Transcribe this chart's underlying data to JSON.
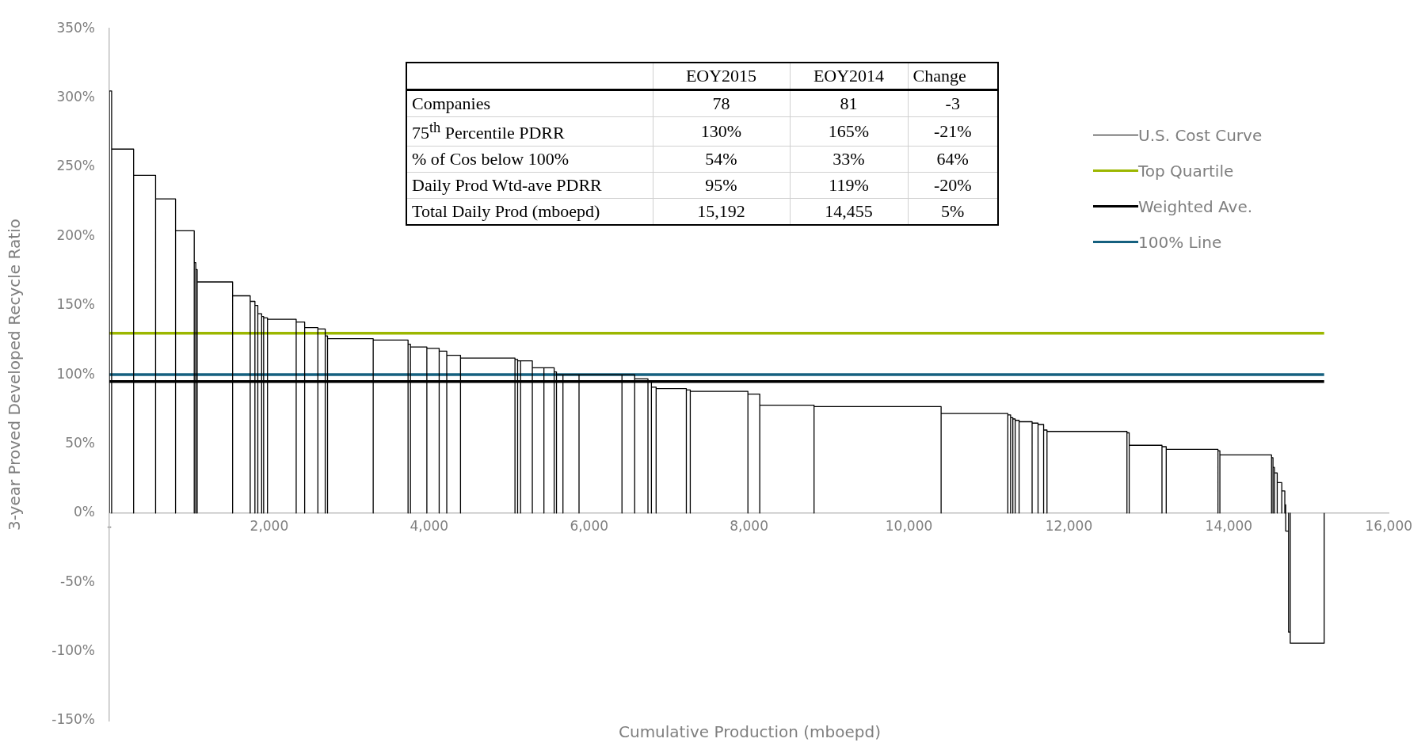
{
  "chart_data": {
    "type": "line",
    "xlabel": "Cumulative Production (mboepd)",
    "ylabel": "3-year Proved Developed Recycle Ratio",
    "xlim": [
      0,
      16000
    ],
    "xticks": [
      {
        "value": 0,
        "label": "-"
      },
      {
        "value": 2000,
        "label": "2,000"
      },
      {
        "value": 4000,
        "label": "4,000"
      },
      {
        "value": 6000,
        "label": "6,000"
      },
      {
        "value": 8000,
        "label": "8,000"
      },
      {
        "value": 10000,
        "label": "10,000"
      },
      {
        "value": 12000,
        "label": "12,000"
      },
      {
        "value": 14000,
        "label": "14,000"
      },
      {
        "value": 16000,
        "label": "16,000"
      }
    ],
    "ylim": [
      -150,
      350
    ],
    "yticks": [
      {
        "value": -150,
        "label": "-150%"
      },
      {
        "value": -100,
        "label": "-100%"
      },
      {
        "value": -50,
        "label": "-50%"
      },
      {
        "value": 0,
        "label": "0%"
      },
      {
        "value": 50,
        "label": "50%"
      },
      {
        "value": 100,
        "label": "100%"
      },
      {
        "value": 150,
        "label": "150%"
      },
      {
        "value": 200,
        "label": "200%"
      },
      {
        "value": 250,
        "label": "250%"
      },
      {
        "value": 300,
        "label": "300%"
      },
      {
        "value": 350,
        "label": "350%"
      }
    ],
    "legend": "top right",
    "marker": "none",
    "series": [
      {
        "name": "U.S. Cost Curve",
        "color": "#000000",
        "x": [
          0,
          0,
          29,
          29,
          29,
          304,
          304,
          304,
          579,
          579,
          579,
          828,
          828,
          828,
          1062,
          1062,
          1062,
          1081,
          1081,
          1081,
          1099,
          1099,
          1099,
          1542,
          1542,
          1542,
          1762,
          1762,
          1762,
          1821,
          1821,
          1821,
          1857,
          1857,
          1857,
          1905,
          1905,
          1905,
          1930,
          1930,
          1930,
          1978,
          1978,
          1978,
          2337,
          2337,
          2337,
          2443,
          2443,
          2443,
          2608,
          2608,
          2608,
          2700,
          2700,
          2700,
          2729,
          2729,
          2729,
          3300,
          3300,
          3300,
          3736,
          3736,
          3736,
          3766,
          3766,
          3766,
          3971,
          3971,
          3971,
          4125,
          4125,
          4125,
          4220,
          4220,
          4220,
          4392,
          4392,
          4392,
          5073,
          5073,
          5073,
          5106,
          5106,
          5106,
          5143,
          5143,
          5143,
          5290,
          5290,
          5290,
          5435,
          5435,
          5435,
          5563,
          5563,
          5563,
          5592,
          5592,
          5592,
          5673,
          5673,
          5673,
          5874,
          5874,
          5874,
          6411,
          6411,
          6411,
          6570,
          6570,
          6570,
          6736,
          6736,
          6736,
          6779,
          6779,
          6779,
          6838,
          6838,
          6838,
          7216,
          7216,
          7216,
          7265,
          7265,
          7265,
          7986,
          7986,
          7986,
          8134,
          8134,
          8134,
          8813,
          8813,
          8813,
          10402,
          10402,
          10402,
          11236,
          11236,
          11236,
          11271,
          11271,
          11271,
          11299,
          11299,
          11299,
          11328,
          11328,
          11328,
          11377,
          11377,
          11377,
          11540,
          11540,
          11540,
          11614,
          11614,
          11614,
          11684,
          11684,
          11684,
          11726,
          11726,
          11726,
          12726,
          12726,
          12726,
          12754,
          12754,
          12754,
          13164,
          13164,
          13164,
          13217,
          13217,
          13217,
          13864,
          13864,
          13864,
          13888,
          13888,
          13888,
          14534,
          14534,
          14534,
          14552,
          14552,
          14552,
          14570,
          14570,
          14570,
          14605,
          14605,
          14605,
          14662,
          14662,
          14662,
          14700,
          14700,
          14700,
          14711,
          14711,
          14711,
          14747,
          14747,
          14747,
          14768,
          14768,
          14768,
          15192,
          15192
        ],
        "values": [
          0,
          305,
          305,
          0,
          263,
          263,
          0,
          244,
          244,
          0,
          227,
          227,
          0,
          204,
          204,
          0,
          181,
          181,
          0,
          176,
          176,
          0,
          167,
          167,
          0,
          157,
          157,
          0,
          153,
          153,
          0,
          150,
          150,
          0,
          144,
          144,
          0,
          142,
          142,
          0,
          141,
          141,
          0,
          140,
          140,
          0,
          138,
          138,
          0,
          134,
          134,
          0,
          133,
          133,
          0,
          128,
          128,
          0,
          126,
          126,
          0,
          125,
          125,
          0,
          122,
          122,
          0,
          120,
          120,
          0,
          119,
          119,
          0,
          117,
          117,
          0,
          114,
          114,
          0,
          112,
          112,
          0,
          111,
          111,
          0,
          110,
          110,
          0,
          110,
          110,
          0,
          105,
          105,
          0,
          105,
          105,
          0,
          102,
          102,
          0,
          100,
          100,
          0,
          100,
          100,
          0,
          100,
          100,
          0,
          100,
          100,
          0,
          97,
          97,
          0,
          95,
          95,
          0,
          91,
          91,
          0,
          90,
          90,
          0,
          89,
          89,
          0,
          88,
          88,
          0,
          86,
          86,
          0,
          78,
          78,
          0,
          77,
          77,
          0,
          72,
          72,
          0,
          71,
          71,
          0,
          69,
          69,
          0,
          68,
          68,
          0,
          67,
          67,
          0,
          66,
          66,
          0,
          65,
          65,
          0,
          64,
          64,
          0,
          60,
          60,
          0,
          59,
          59,
          0,
          58,
          58,
          0,
          49,
          49,
          0,
          48,
          48,
          0,
          46,
          46,
          0,
          45,
          45,
          0,
          42,
          42,
          0,
          40,
          40,
          0,
          33,
          33,
          0,
          29,
          29,
          0,
          22,
          22,
          0,
          16,
          16,
          0,
          6,
          6,
          0,
          -13,
          -13,
          0,
          -86,
          -86,
          0,
          -94,
          -94,
          0
        ]
      },
      {
        "name": "Top Quartile",
        "color": "#9cb700",
        "x": [
          0,
          15192
        ],
        "values": [
          130,
          130
        ]
      },
      {
        "name": "Weighted Ave.",
        "color": "#000000",
        "x": [
          0,
          15192
        ],
        "values": [
          95,
          95
        ]
      },
      {
        "name": "100% Line",
        "color": "#15607f",
        "x": [
          0,
          15192
        ],
        "values": [
          100,
          100
        ]
      }
    ],
    "annotations": [
      "EOY2015",
      "EOY2014",
      "Change",
      "Companies",
      "78",
      "81",
      "-3",
      "75$^{th}$ Percentile PDRR",
      "130%",
      "165%",
      "-21%",
      "% of Cos below 100%",
      "54%",
      "33%",
      "64%",
      "Daily Prod Wtd-ave PDRR",
      "95%",
      "119%",
      "-20%",
      "Total Daily Prod (mboepd)",
      "15,192",
      "14,455",
      "5%"
    ]
  }
}
